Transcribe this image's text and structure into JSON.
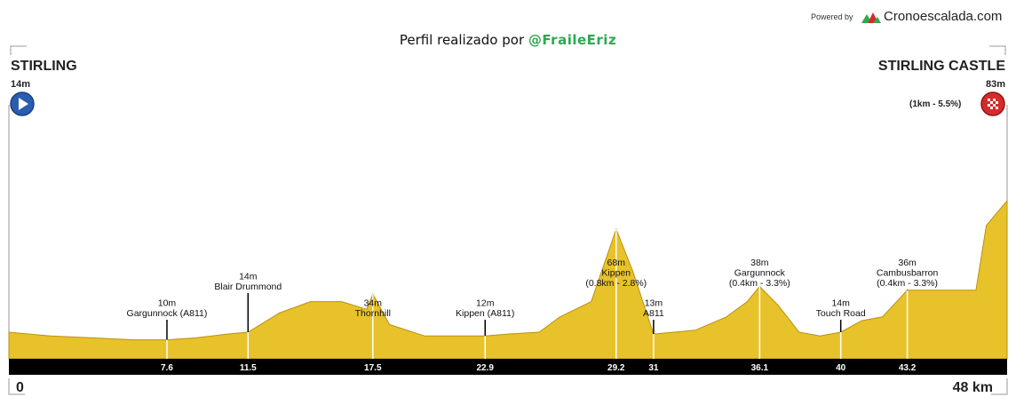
{
  "header": {
    "powered_by": "Powered by",
    "brand": "Cronoescalada.com",
    "credit_prefix": "Perfil realizado por",
    "credit_handle": "@FraileEriz"
  },
  "start": {
    "name": "STIRLING",
    "altitude": "14m"
  },
  "finish": {
    "name": "STIRLING CASTLE",
    "altitude": "83m",
    "climb": "(1km - 5.5%)"
  },
  "axis": {
    "start_label": "0",
    "end_label": "48 km"
  },
  "colors": {
    "profile_fill": "#e8c22a",
    "profile_dark": "#5a4a10",
    "base_band": "#000000",
    "start_icon": "#2a5db0",
    "finish_icon": "#d62b2b",
    "brand_green": "#2fa84f"
  },
  "chart_data": {
    "type": "area",
    "title": "",
    "xlabel": "",
    "ylabel": "",
    "xlim": [
      0,
      48
    ],
    "ylim": [
      0,
      120
    ],
    "profile": {
      "x": [
        0,
        2,
        4,
        6,
        7.6,
        9,
        10.5,
        11.5,
        13,
        14.5,
        16,
        17.2,
        17.5,
        18.3,
        20,
        22.9,
        24,
        25.5,
        26.5,
        28,
        29.2,
        30,
        31,
        33,
        34.5,
        35.5,
        36.1,
        37,
        38,
        39,
        40,
        41,
        42,
        43.2,
        45.5,
        46.5,
        47,
        48
      ],
      "y": [
        14,
        12,
        11,
        10,
        10,
        11,
        13,
        14,
        24,
        30,
        30,
        26,
        34,
        18,
        12,
        12,
        13,
        14,
        22,
        30,
        68,
        46,
        13,
        15,
        22,
        30,
        38,
        28,
        14,
        12,
        14,
        20,
        22,
        36,
        36,
        36,
        70,
        83
      ]
    },
    "waypoints": [
      {
        "km": 7.6,
        "tick": "7.6",
        "altitude": "10m",
        "name": "Gargunnock (A811)",
        "climb": ""
      },
      {
        "km": 11.5,
        "tick": "11.5",
        "altitude": "14m",
        "name": "Blair Drummond",
        "climb": ""
      },
      {
        "km": 17.5,
        "tick": "17.5",
        "altitude": "34m",
        "name": "Thornhill",
        "climb": ""
      },
      {
        "km": 22.9,
        "tick": "22.9",
        "altitude": "12m",
        "name": "Kippen (A811)",
        "climb": ""
      },
      {
        "km": 29.2,
        "tick": "29.2",
        "altitude": "68m",
        "name": "Kippen",
        "climb": "(0.8km - 2.8%)"
      },
      {
        "km": 31,
        "tick": "31",
        "altitude": "13m",
        "name": "A811",
        "climb": ""
      },
      {
        "km": 36.1,
        "tick": "36.1",
        "altitude": "38m",
        "name": "Gargunnock",
        "climb": "(0.4km - 3.3%)"
      },
      {
        "km": 40,
        "tick": "40",
        "altitude": "14m",
        "name": "Touch Road",
        "climb": ""
      },
      {
        "km": 43.2,
        "tick": "43.2",
        "altitude": "36m",
        "name": "Cambusbarron",
        "climb": "(0.4km - 3.3%)"
      }
    ]
  }
}
